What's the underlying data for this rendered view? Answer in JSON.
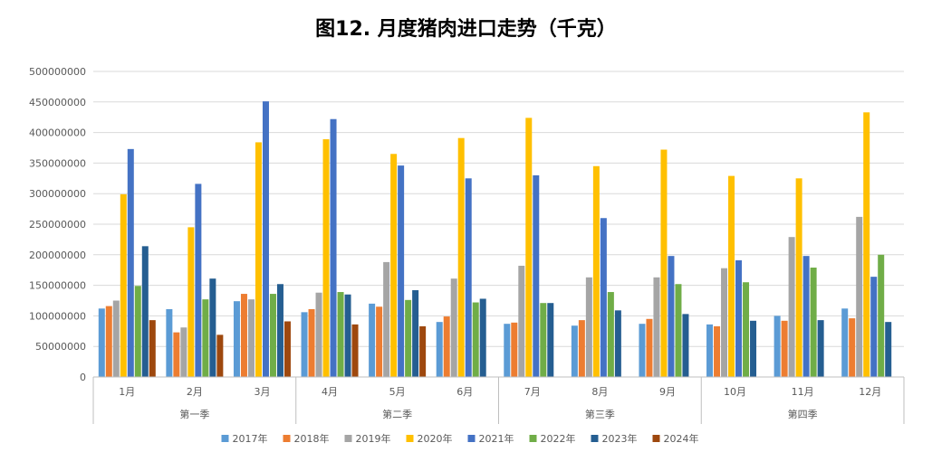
{
  "chart_data": {
    "type": "bar",
    "title": "图12. 月度猪肉进口走势（千克）",
    "xlabel": "",
    "ylabel": "",
    "ylim": [
      0,
      500000000
    ],
    "yticks": [
      0,
      50000000,
      100000000,
      150000000,
      200000000,
      250000000,
      300000000,
      350000000,
      400000000,
      450000000,
      500000000
    ],
    "grid": true,
    "legend_position": "bottom",
    "categories": [
      "1月",
      "2月",
      "3月",
      "4月",
      "5月",
      "6月",
      "7月",
      "8月",
      "9月",
      "10月",
      "11月",
      "12月"
    ],
    "groups": [
      {
        "label": "第一季",
        "months": [
          0,
          1,
          2
        ]
      },
      {
        "label": "第二季",
        "months": [
          3,
          4,
          5
        ]
      },
      {
        "label": "第三季",
        "months": [
          6,
          7,
          8
        ]
      },
      {
        "label": "第四季",
        "months": [
          9,
          10,
          11
        ]
      }
    ],
    "series": [
      {
        "name": "2017年",
        "color": "#5B9BD5",
        "values": [
          112000000,
          111000000,
          124000000,
          106000000,
          120000000,
          90000000,
          87000000,
          84000000,
          87000000,
          86000000,
          100000000,
          112000000
        ]
      },
      {
        "name": "2018年",
        "color": "#ED7D31",
        "values": [
          116000000,
          73000000,
          136000000,
          111000000,
          115000000,
          99000000,
          89000000,
          93000000,
          95000000,
          83000000,
          92000000,
          96000000
        ]
      },
      {
        "name": "2019年",
        "color": "#A5A5A5",
        "values": [
          125000000,
          81000000,
          127000000,
          138000000,
          188000000,
          161000000,
          182000000,
          163000000,
          163000000,
          178000000,
          229000000,
          262000000
        ]
      },
      {
        "name": "2020年",
        "color": "#FFC000",
        "values": [
          299000000,
          245000000,
          384000000,
          389000000,
          365000000,
          391000000,
          424000000,
          345000000,
          372000000,
          329000000,
          325000000,
          433000000
        ]
      },
      {
        "name": "2021年",
        "color": "#4472C4",
        "values": [
          373000000,
          316000000,
          451000000,
          422000000,
          346000000,
          325000000,
          330000000,
          260000000,
          198000000,
          191000000,
          198000000,
          164000000
        ]
      },
      {
        "name": "2022年",
        "color": "#70AD47",
        "values": [
          149000000,
          127000000,
          136000000,
          139000000,
          126000000,
          122000000,
          121000000,
          139000000,
          152000000,
          155000000,
          179000000,
          200000000
        ]
      },
      {
        "name": "2023年",
        "color": "#255E91",
        "values": [
          214000000,
          161000000,
          152000000,
          135000000,
          142000000,
          128000000,
          121000000,
          109000000,
          103000000,
          92000000,
          93000000,
          90000000
        ]
      },
      {
        "name": "2024年",
        "color": "#9E480E",
        "values": [
          93000000,
          69000000,
          91000000,
          86000000,
          83000000,
          null,
          null,
          null,
          null,
          null,
          null,
          null
        ]
      }
    ]
  }
}
